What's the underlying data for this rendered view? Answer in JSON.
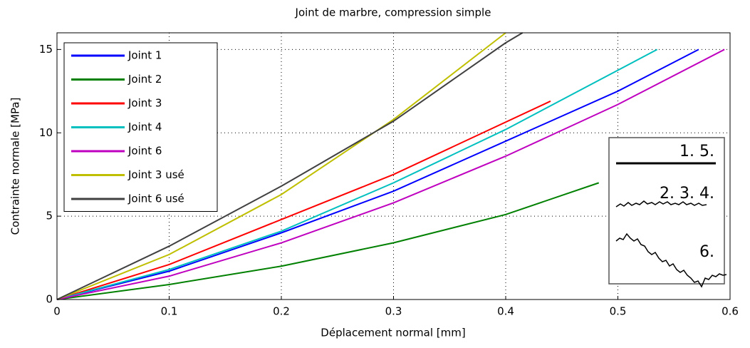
{
  "chart_data": {
    "type": "line",
    "title": "Joint de marbre, compression simple",
    "x_label": "Déplacement normal [mm]",
    "y_label": "Contrainte normale [MPa]",
    "xlim": [
      0,
      0.6
    ],
    "ylim": [
      0,
      16
    ],
    "xticks": [
      0,
      0.1,
      0.2,
      0.3,
      0.4,
      0.5,
      0.6
    ],
    "yticks": [
      0,
      5,
      10,
      15
    ],
    "grid": true,
    "legend": "upper left",
    "series": [
      {
        "name": "Joint 1",
        "color": "#0000ff",
        "x": [
          0,
          0.1,
          0.2,
          0.3,
          0.4,
          0.5,
          0.572
        ],
        "values": [
          0,
          1.7,
          4.0,
          6.5,
          9.5,
          12.5,
          15
        ]
      },
      {
        "name": "Joint 2",
        "color": "#008000",
        "x": [
          0,
          0.1,
          0.2,
          0.3,
          0.4,
          0.483
        ],
        "values": [
          0,
          0.9,
          2.0,
          3.4,
          5.1,
          7.0
        ]
      },
      {
        "name": "Joint 3",
        "color": "#ff0000",
        "x": [
          0,
          0.1,
          0.2,
          0.3,
          0.44
        ],
        "values": [
          0,
          2.1,
          4.8,
          7.5,
          11.9
        ]
      },
      {
        "name": "Joint 4",
        "color": "#00bfbf",
        "x": [
          0,
          0.1,
          0.2,
          0.3,
          0.4,
          0.535
        ],
        "values": [
          0,
          1.8,
          4.1,
          7.0,
          10.2,
          15
        ]
      },
      {
        "name": "Joint 6",
        "color": "#bf00bf",
        "x": [
          0,
          0.1,
          0.2,
          0.3,
          0.4,
          0.5,
          0.595
        ],
        "values": [
          0,
          1.4,
          3.4,
          5.8,
          8.6,
          11.7,
          15
        ]
      },
      {
        "name": "Joint 3 usé",
        "color": "#bfbf00",
        "x": [
          0,
          0.1,
          0.2,
          0.3,
          0.4
        ],
        "values": [
          0,
          2.7,
          6.3,
          10.8,
          16
        ]
      },
      {
        "name": "Joint 6 usé",
        "color": "#404040",
        "x": [
          0,
          0.1,
          0.2,
          0.3,
          0.4,
          0.415
        ],
        "values": [
          0,
          3.2,
          6.8,
          10.7,
          15.4,
          16
        ]
      }
    ],
    "annotations": [
      "1. 5.",
      "2. 3. 4.",
      "6."
    ]
  }
}
